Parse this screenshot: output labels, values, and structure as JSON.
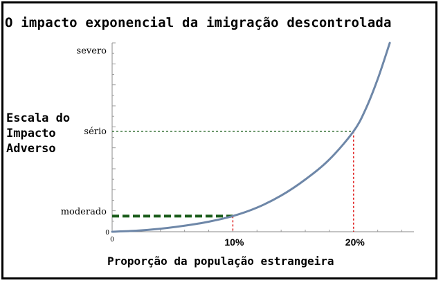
{
  "chart_data": {
    "type": "line",
    "title": "O impacto exponencial da imigração descontrolada",
    "ylabel": "Escala do Impacto Adverso",
    "xlabel": "Proporção da população estrangeira",
    "x_ticks": [
      {
        "value": 0,
        "label": "0"
      },
      {
        "value": 10,
        "label": "10%"
      },
      {
        "value": 20,
        "label": "20%"
      }
    ],
    "y_ticks": [
      {
        "value": 0,
        "label": "0"
      },
      {
        "value": 1,
        "label": "moderado"
      },
      {
        "value": 5,
        "label": "sério"
      },
      {
        "value": 9,
        "label": "severo"
      }
    ],
    "xlim": [
      0,
      25
    ],
    "ylim": [
      0,
      9.4
    ],
    "series": [
      {
        "x": [
          0,
          2,
          4,
          6,
          8,
          10,
          12,
          14,
          16,
          18,
          20,
          21,
          22,
          23
        ],
        "y": [
          0,
          0.05,
          0.15,
          0.3,
          0.5,
          0.78,
          1.2,
          1.8,
          2.6,
          3.6,
          5.0,
          6.1,
          7.6,
          9.4
        ],
        "color": "#6e87a8"
      }
    ],
    "reference_lines": [
      {
        "x": 10,
        "y": 0.78,
        "horizontal_style": "thick dashed",
        "horizontal_color": "#1a5c1a",
        "vertical_color": "#e02020"
      },
      {
        "x": 20,
        "y": 5.0,
        "horizontal_style": "dotted",
        "horizontal_color": "#2e6b2e",
        "vertical_color": "#e02020"
      }
    ],
    "grid": false,
    "legend": "none"
  }
}
